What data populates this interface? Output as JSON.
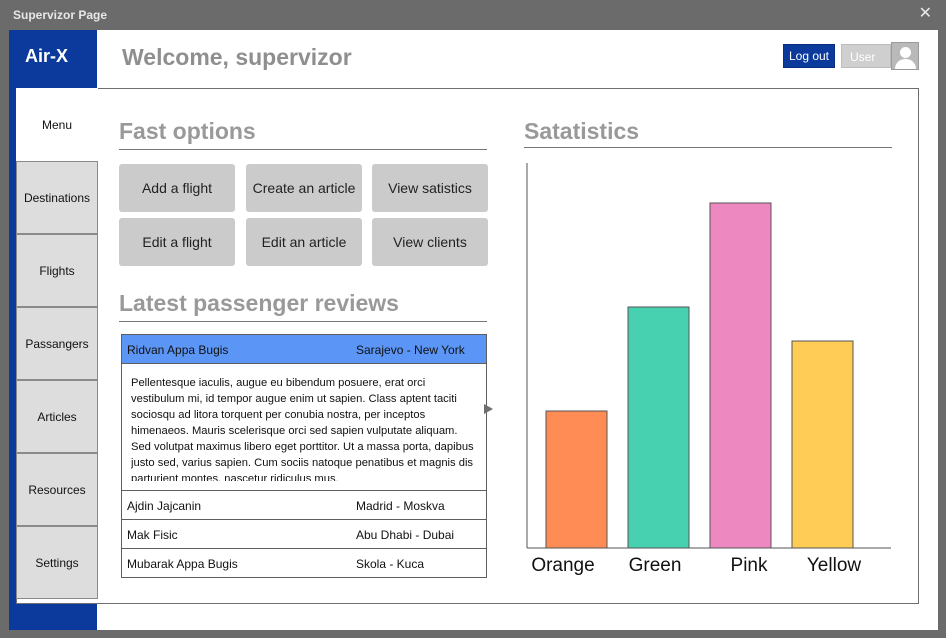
{
  "window": {
    "title": "Supervizor Page",
    "close_glyph": "✕"
  },
  "brand": {
    "name": "Air-X"
  },
  "header": {
    "welcome": "Welcome, supervizor",
    "logout_label": "Log out",
    "user_label": "User"
  },
  "menu": {
    "items": [
      {
        "label": "Menu",
        "active": true
      },
      {
        "label": "Destinations"
      },
      {
        "label": "Flights"
      },
      {
        "label": "Passangers"
      },
      {
        "label": "Articles"
      },
      {
        "label": "Resources"
      },
      {
        "label": "Settings"
      }
    ]
  },
  "fast_options": {
    "title": "Fast options",
    "buttons": [
      "Add a flight",
      "Create an article",
      "View satistics",
      "Edit a flight",
      "Edit an article",
      "View clients"
    ]
  },
  "reviews": {
    "title": "Latest passenger reviews",
    "selected": {
      "name": "Ridvan Appa Bugis",
      "route": "Sarajevo - New York",
      "text": "Pellentesque iaculis, augue eu bibendum posuere, erat orci vestibulum mi, id tempor augue enim ut sapien. Class aptent taciti sociosqu ad litora torquent per conubia nostra, per inceptos himenaeos. Mauris scelerisque orci sed sapien vulputate aliquam. Sed volutpat maximus libero eget porttitor. Ut a massa porta, dapibus justo sed, varius sapien. Cum sociis natoque penatibus et magnis dis parturient montes, nascetur ridiculus mus."
    },
    "rows": [
      {
        "name": "Ajdin Jajcanin",
        "route": "Madrid -  Moskva"
      },
      {
        "name": "Mak Fisic",
        "route": "Abu Dhabi - Dubai"
      },
      {
        "name": "Mubarak Appa Bugis",
        "route": "Skola - Kuca"
      }
    ]
  },
  "statistics": {
    "title": "Satatistics"
  },
  "chart_data": {
    "type": "bar",
    "categories": [
      "Orange",
      "Green",
      "Pink",
      "Yellow"
    ],
    "values": [
      137,
      241,
      345,
      207
    ],
    "colors": [
      "#ff8c55",
      "#48d1b0",
      "#ee88c0",
      "#ffcc55"
    ],
    "ylim": [
      0,
      385
    ],
    "grid": false,
    "legend": "none"
  }
}
